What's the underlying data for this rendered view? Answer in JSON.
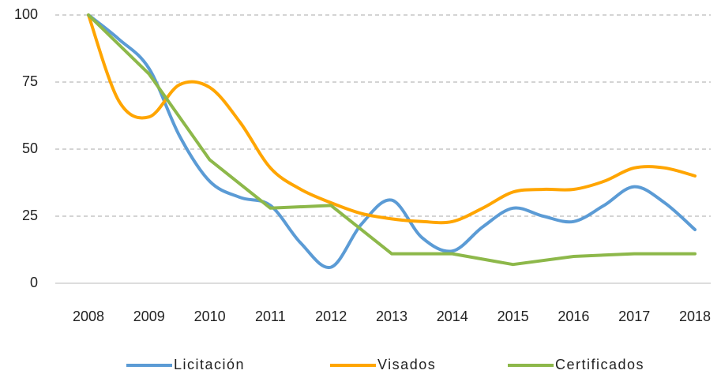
{
  "chart_data": {
    "type": "line",
    "x": [
      2008,
      2008.5,
      2009,
      2009.5,
      2010,
      2010.5,
      2011,
      2011.5,
      2012,
      2012.5,
      2013,
      2013.5,
      2014,
      2014.5,
      2015,
      2015.5,
      2016,
      2016.5,
      2017,
      2017.5,
      2018
    ],
    "xlim": [
      2008,
      2018
    ],
    "xticks": [
      2008,
      2009,
      2010,
      2011,
      2012,
      2013,
      2014,
      2015,
      2016,
      2017,
      2018
    ],
    "ylim": [
      0,
      100
    ],
    "yticks": [
      0,
      25,
      50,
      75,
      100
    ],
    "grid": true,
    "legend": "bottom",
    "series": [
      {
        "name": "Licitación",
        "color": "#5b9bd5",
        "smooth": true,
        "values": [
          100,
          91,
          80,
          55,
          38,
          32,
          29,
          15,
          6,
          22,
          31,
          17,
          12,
          21,
          28,
          25,
          23,
          29,
          36,
          30,
          20
        ]
      },
      {
        "name": "Visados",
        "color": "#ffa500",
        "smooth": true,
        "values": [
          100,
          68,
          62,
          74,
          73,
          60,
          43,
          35,
          30,
          26,
          24,
          23,
          23,
          28,
          34,
          35,
          35,
          38,
          43,
          43,
          40
        ]
      },
      {
        "name": "Certificados",
        "color": "#8db84a",
        "smooth": false,
        "values": [
          100,
          null,
          78,
          null,
          46,
          null,
          28,
          null,
          29,
          null,
          11,
          null,
          11,
          null,
          7,
          null,
          10,
          null,
          11,
          null,
          11
        ]
      }
    ]
  }
}
